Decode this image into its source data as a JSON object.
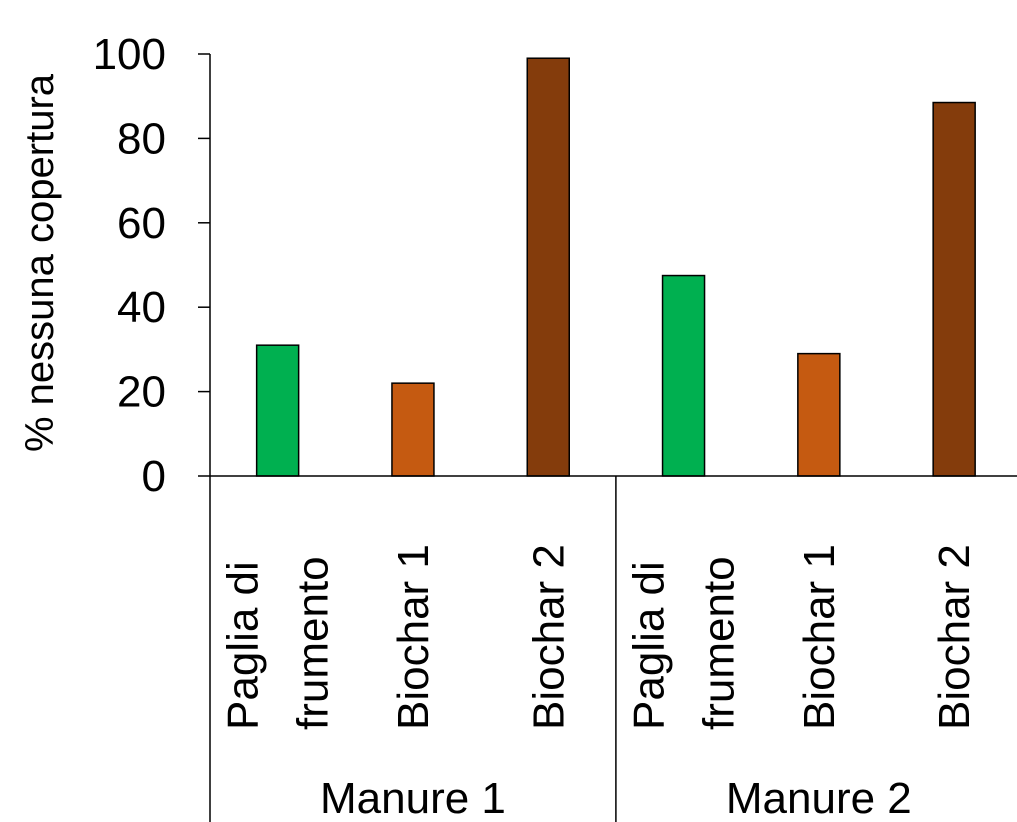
{
  "chart_data": {
    "type": "bar",
    "title": "",
    "xlabel": "",
    "ylabel": "% nessuna copertura",
    "ylim": [
      0,
      100
    ],
    "yticks": [
      0,
      20,
      40,
      60,
      80,
      100
    ],
    "grid": false,
    "legend": "none",
    "groups": [
      {
        "name": "Manure 1",
        "bars": [
          {
            "category": [
              "Paglia di",
              "frumento"
            ],
            "value": 31,
            "color": "#00b050"
          },
          {
            "category": [
              "Biochar 1"
            ],
            "value": 22,
            "color": "#c55a11"
          },
          {
            "category": [
              "Biochar 2"
            ],
            "value": 99,
            "color": "#843c0c"
          }
        ]
      },
      {
        "name": "Manure 2",
        "bars": [
          {
            "category": [
              "Paglia di",
              "frumento"
            ],
            "value": 47.5,
            "color": "#00b050"
          },
          {
            "category": [
              "Biochar 1"
            ],
            "value": 29,
            "color": "#c55a11"
          },
          {
            "category": [
              "Biochar 2"
            ],
            "value": 88.5,
            "color": "#843c0c"
          }
        ]
      }
    ]
  }
}
